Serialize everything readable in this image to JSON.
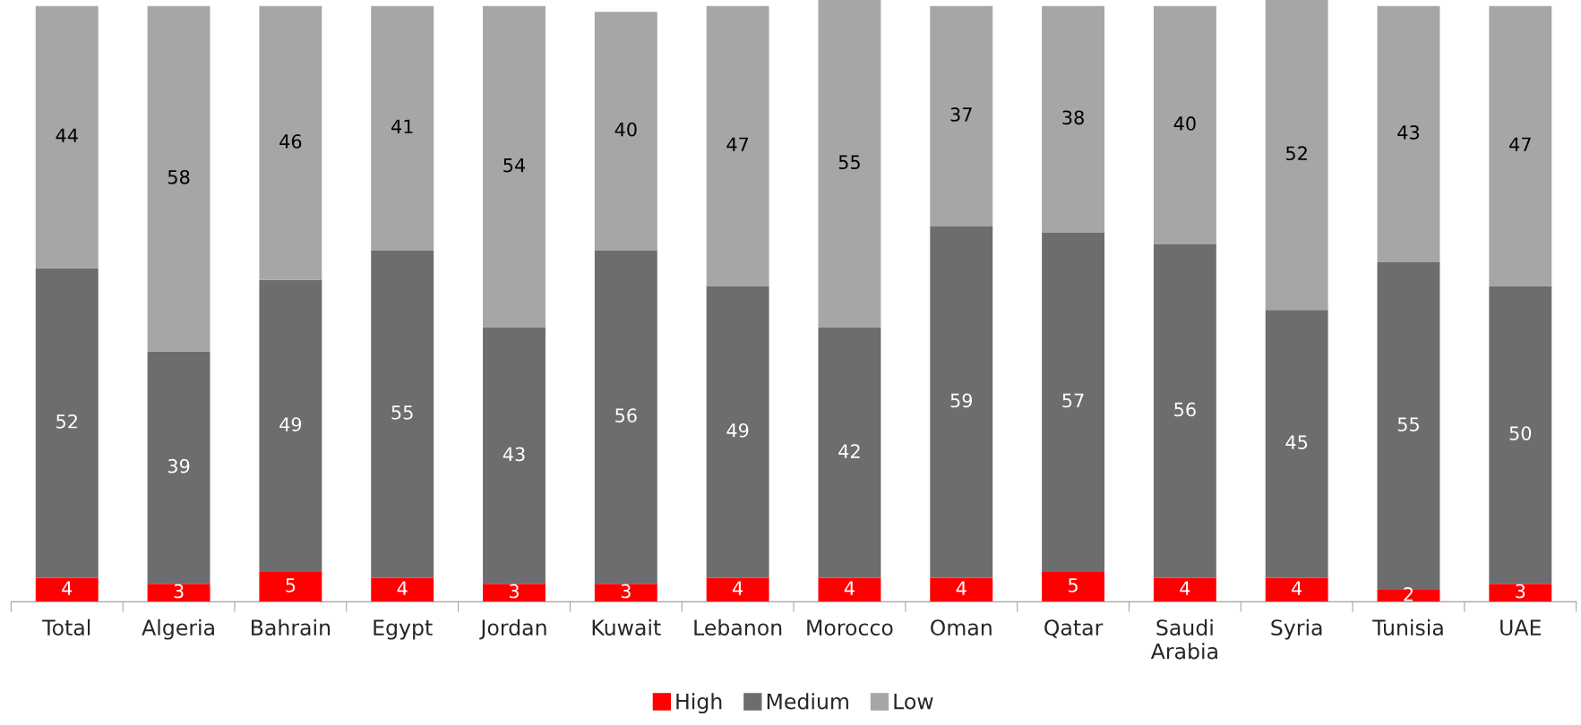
{
  "chart_data": {
    "type": "bar",
    "stacked": true,
    "tick_labels": "x",
    "data_labels": true,
    "legend": "bottom",
    "grid": false,
    "categories": [
      "Total",
      "Algeria",
      "Bahrain",
      "Egypt",
      "Jordan",
      "Kuwait",
      "Lebanon",
      "Morocco",
      "Oman",
      "Qatar",
      "Saudi Arabia",
      "Syria",
      "Tunisia",
      "UAE"
    ],
    "series": [
      {
        "name": "High",
        "color": "#ff0000",
        "values": [
          4,
          3,
          5,
          4,
          3,
          3,
          4,
          4,
          4,
          5,
          4,
          4,
          2,
          3
        ]
      },
      {
        "name": "Medium",
        "color": "#6d6d6f",
        "values": [
          52,
          39,
          49,
          55,
          43,
          56,
          49,
          42,
          59,
          57,
          56,
          45,
          55,
          50
        ]
      },
      {
        "name": "Low",
        "color": "#a6a6a8",
        "values": [
          44,
          58,
          46,
          41,
          54,
          40,
          47,
          55,
          37,
          38,
          40,
          52,
          43,
          47
        ]
      }
    ]
  }
}
